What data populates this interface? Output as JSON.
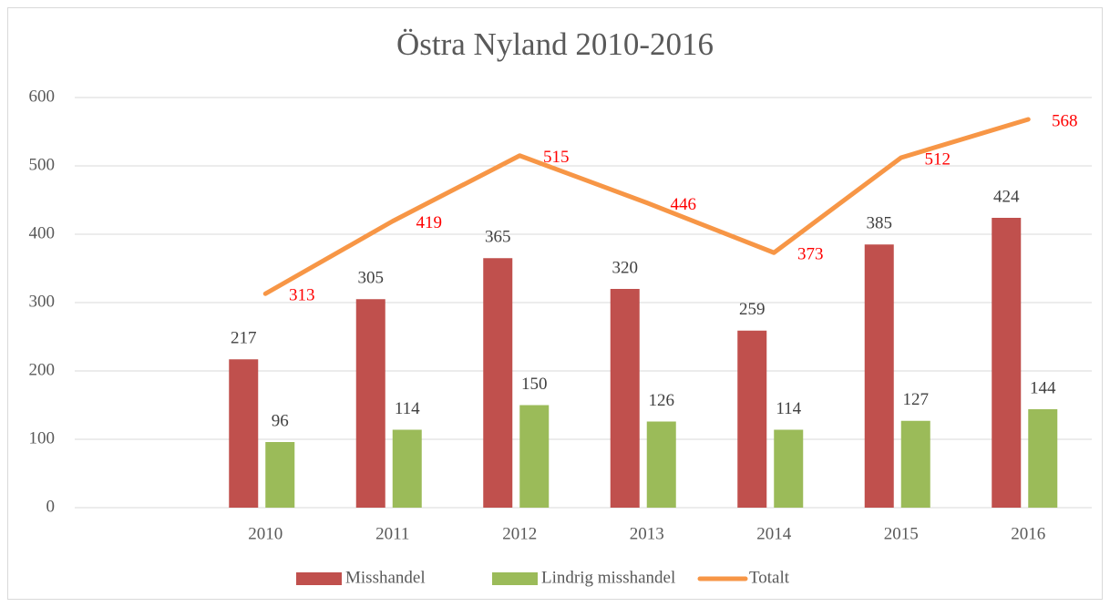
{
  "chart_data": {
    "type": "combo",
    "title": "Östra Nyland 2010-2016",
    "categories": [
      null,
      "2010",
      "2011",
      "2012",
      "2013",
      "2014",
      "2015",
      "2016"
    ],
    "series": [
      {
        "name": "Misshandel",
        "type": "bar",
        "color": "#c0504d",
        "label_color": "#404040",
        "values": [
          null,
          217,
          305,
          365,
          320,
          259,
          385,
          424
        ]
      },
      {
        "name": "Lindrig misshandel",
        "type": "bar",
        "color": "#9bbb59",
        "label_color": "#404040",
        "values": [
          null,
          96,
          114,
          150,
          126,
          114,
          127,
          144
        ]
      },
      {
        "name": "Totalt",
        "type": "line",
        "color": "#f79646",
        "label_color": "#ff0000",
        "values": [
          null,
          313,
          419,
          515,
          446,
          373,
          512,
          568
        ]
      }
    ],
    "ylim": [
      0,
      600
    ],
    "yticks": [
      0,
      100,
      200,
      300,
      400,
      500,
      600
    ],
    "grid": true,
    "legend": "bottom"
  }
}
